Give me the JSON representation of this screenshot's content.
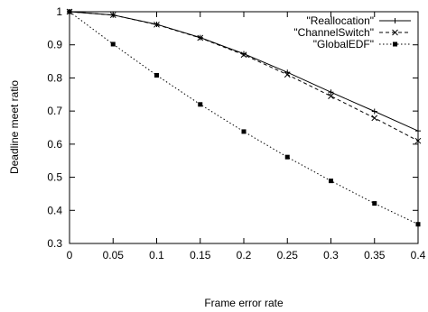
{
  "chart_data": {
    "type": "line",
    "title": "",
    "xlabel": "Frame error rate",
    "ylabel": "Deadline meet ratio",
    "xlim": [
      0,
      0.4
    ],
    "ylim": [
      0.3,
      1
    ],
    "x_ticks": [
      "0",
      "0.05",
      "0.1",
      "0.15",
      "0.2",
      "0.25",
      "0.3",
      "0.35",
      "0.4"
    ],
    "y_ticks": [
      "0.3",
      "0.4",
      "0.5",
      "0.6",
      "0.7",
      "0.8",
      "0.9",
      "1"
    ],
    "grid": false,
    "legend_position": "top-right",
    "x": [
      0,
      0.05,
      0.1,
      0.15,
      0.2,
      0.25,
      0.3,
      0.35,
      0.4
    ],
    "series": [
      {
        "name": "\"Reallocation\"",
        "marker": "plus",
        "dash": "solid",
        "values": [
          1.0,
          0.99,
          0.962,
          0.922,
          0.873,
          0.817,
          0.757,
          0.699,
          0.64
        ]
      },
      {
        "name": "\"ChannelSwitch\"",
        "marker": "cross",
        "dash": "dashed",
        "values": [
          1.0,
          0.99,
          0.961,
          0.921,
          0.87,
          0.81,
          0.745,
          0.679,
          0.61
        ]
      },
      {
        "name": "\"GlobalEDF\"",
        "marker": "square",
        "dash": "dotted",
        "values": [
          1.0,
          0.902,
          0.808,
          0.72,
          0.638,
          0.561,
          0.489,
          0.421,
          0.358
        ]
      }
    ]
  }
}
